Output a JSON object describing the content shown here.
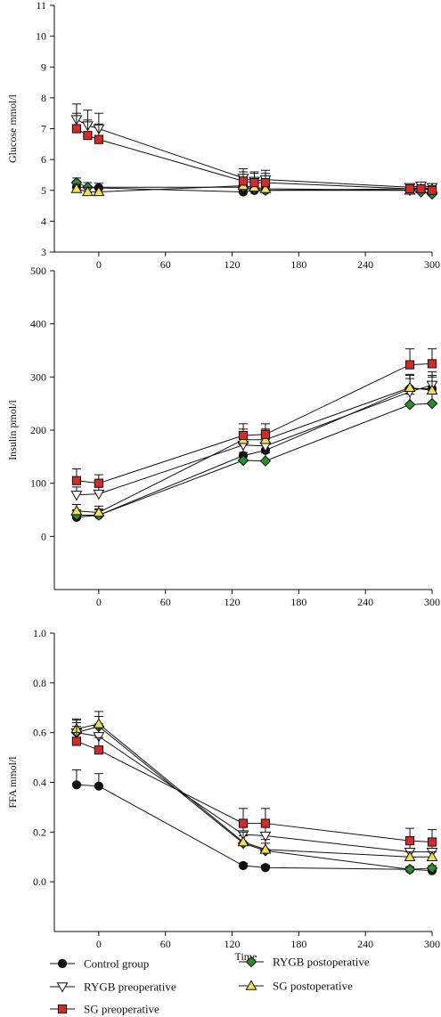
{
  "chart_data": [
    {
      "type": "line",
      "ylabel": "Glucose mmol/l",
      "xlabel": "",
      "ylim": [
        3,
        11
      ],
      "xlim": [
        -40,
        300
      ],
      "yticks": [
        3,
        4,
        5,
        6,
        7,
        8,
        9,
        10,
        11
      ],
      "xticks": [
        0,
        60,
        120,
        180,
        240,
        300
      ],
      "series": [
        {
          "name": "Control group",
          "x": [
            -20,
            0,
            130,
            140,
            150,
            280,
            290,
            300
          ],
          "y": [
            5.1,
            5.08,
            4.95,
            5.0,
            5.0,
            5.05,
            5.1,
            5.05
          ],
          "err": [
            0.2,
            0.15,
            0.12,
            0.12,
            0.12,
            0.1,
            0.1,
            0.1
          ]
        },
        {
          "name": "RYGB postoperative",
          "x": [
            -20,
            -10,
            130,
            140,
            150,
            280,
            290,
            300
          ],
          "y": [
            5.25,
            5.1,
            5.1,
            5.05,
            5.0,
            5.0,
            4.95,
            4.88
          ],
          "err": [
            0.15,
            0.15,
            0.12,
            0.12,
            0.1,
            0.1,
            0.1,
            0.1
          ]
        },
        {
          "name": "RYGB preoperative",
          "x": [
            -20,
            -10,
            0,
            130,
            140,
            150,
            280,
            290,
            300
          ],
          "y": [
            7.3,
            7.1,
            7.0,
            5.4,
            5.3,
            5.35,
            5.1,
            5.15,
            5.1
          ],
          "err": [
            0.5,
            0.5,
            0.5,
            0.3,
            0.3,
            0.3,
            0.1,
            0.1,
            0.1
          ]
        },
        {
          "name": "SG postoperative",
          "x": [
            -20,
            -10,
            0,
            130,
            140,
            150,
            280,
            290,
            300
          ],
          "y": [
            5.05,
            4.95,
            4.95,
            5.15,
            5.1,
            5.05,
            5.0,
            5.05,
            5.05
          ],
          "err": [
            0.15,
            0.15,
            0.15,
            0.15,
            0.15,
            0.15,
            0.1,
            0.1,
            0.1
          ]
        },
        {
          "name": "SG preoperative",
          "x": [
            -20,
            -10,
            0,
            130,
            140,
            150,
            280,
            290,
            300
          ],
          "y": [
            7.0,
            6.78,
            6.65,
            5.3,
            5.25,
            5.25,
            5.05,
            5.05,
            5.0
          ],
          "err": [
            0.5,
            0.5,
            0.5,
            0.3,
            0.3,
            0.3,
            0.1,
            0.1,
            0.1
          ]
        }
      ]
    },
    {
      "type": "line",
      "ylabel": "Insulin pmol/l",
      "xlabel": "",
      "ylim": [
        -100,
        500
      ],
      "xlim": [
        -40,
        300
      ],
      "yticks": [
        0,
        100,
        200,
        300,
        400,
        500
      ],
      "xticks": [
        0,
        60,
        120,
        180,
        240,
        300
      ],
      "series": [
        {
          "name": "Control group",
          "x": [
            -20,
            0,
            130,
            150,
            280,
            300
          ],
          "y": [
            36,
            40,
            152,
            162,
            278,
            278
          ],
          "err": [
            12,
            12,
            20,
            20,
            25,
            25
          ]
        },
        {
          "name": "RYGB postoperative",
          "x": [
            -20,
            0,
            130,
            150,
            280,
            300
          ],
          "y": [
            40,
            40,
            143,
            142,
            248,
            250
          ],
          "err": [
            10,
            10,
            15,
            15,
            20,
            20
          ]
        },
        {
          "name": "RYGB preoperative",
          "x": [
            -20,
            0,
            130,
            150,
            280,
            300
          ],
          "y": [
            78,
            80,
            172,
            170,
            272,
            285
          ],
          "err": [
            15,
            15,
            20,
            20,
            25,
            25
          ]
        },
        {
          "name": "SG postoperative",
          "x": [
            -20,
            0,
            130,
            150,
            280,
            300
          ],
          "y": [
            48,
            45,
            182,
            182,
            280,
            275
          ],
          "err": [
            12,
            12,
            20,
            20,
            25,
            25
          ]
        },
        {
          "name": "SG preoperative",
          "x": [
            -20,
            0,
            130,
            150,
            280,
            300
          ],
          "y": [
            105,
            100,
            190,
            192,
            323,
            325
          ],
          "err": [
            22,
            16,
            22,
            20,
            30,
            28
          ]
        }
      ]
    },
    {
      "type": "line",
      "ylabel": "FFA mmol/l",
      "xlabel": "Time",
      "ylim": [
        -0.2,
        1.0
      ],
      "xlim": [
        -40,
        300
      ],
      "yticks": [
        0.0,
        0.2,
        0.4,
        0.6,
        0.8,
        1.0
      ],
      "ytick_labels": [
        "0.0",
        "0.2",
        "0.4",
        "0.6",
        "0.8",
        "1.0"
      ],
      "xticks": [
        0,
        60,
        120,
        180,
        240,
        300
      ],
      "series": [
        {
          "name": "Control group",
          "x": [
            -20,
            0,
            130,
            150,
            280,
            300
          ],
          "y": [
            0.39,
            0.385,
            0.065,
            0.057,
            0.05,
            0.045
          ],
          "err": [
            0.06,
            0.05,
            0.01,
            0.01,
            0.01,
            0.01
          ]
        },
        {
          "name": "RYGB postoperative",
          "x": [
            -20,
            0,
            130,
            150,
            280,
            300
          ],
          "y": [
            0.6,
            0.625,
            0.155,
            0.125,
            0.05,
            0.055
          ],
          "err": [
            0.04,
            0.04,
            0.03,
            0.03,
            0.01,
            0.01
          ]
        },
        {
          "name": "RYGB preoperative",
          "x": [
            -20,
            0,
            130,
            150,
            280,
            300
          ],
          "y": [
            0.6,
            0.585,
            0.19,
            0.185,
            0.12,
            0.12
          ],
          "err": [
            0.05,
            0.05,
            0.05,
            0.05,
            0.03,
            0.03
          ]
        },
        {
          "name": "SG postoperative",
          "x": [
            -20,
            0,
            130,
            150,
            280,
            300
          ],
          "y": [
            0.615,
            0.635,
            0.16,
            0.13,
            0.1,
            0.1
          ],
          "err": [
            0.04,
            0.05,
            0.04,
            0.04,
            0.02,
            0.02
          ]
        },
        {
          "name": "SG preoperative",
          "x": [
            -20,
            0,
            130,
            150,
            280,
            300
          ],
          "y": [
            0.565,
            0.53,
            0.235,
            0.235,
            0.165,
            0.16
          ],
          "err": [
            0.06,
            0.05,
            0.06,
            0.06,
            0.05,
            0.05
          ]
        }
      ]
    }
  ],
  "legend": [
    {
      "name": "Control group",
      "marker": "circle",
      "color": "#111111"
    },
    {
      "name": "RYGB postoperative",
      "marker": "diamond",
      "color": "#2e8b2e"
    },
    {
      "name": "RYGB preoperative",
      "marker": "triangle-down",
      "color": "#ffffff"
    },
    {
      "name": "SG postoperative",
      "marker": "triangle-up",
      "color": "#f2e14a"
    },
    {
      "name": "SG preoperative",
      "marker": "square",
      "color": "#d42a2a"
    }
  ]
}
